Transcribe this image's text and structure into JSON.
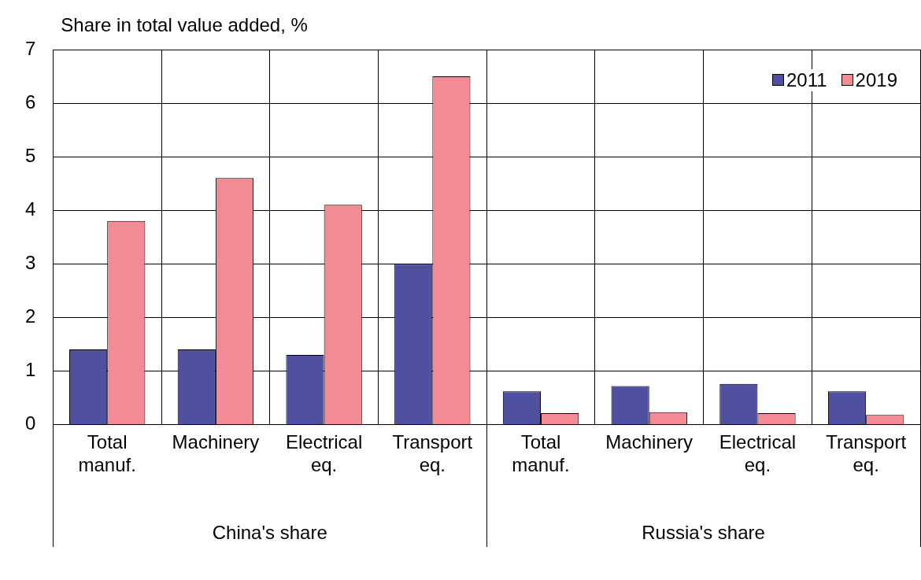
{
  "chart_data": {
    "type": "bar",
    "ylabel": "Share in total value added, %",
    "categories": [
      "Total manuf.",
      "Machinery",
      "Electrical eq.",
      "Transport eq.",
      "Total manuf.",
      "Machinery",
      "Electrical eq.",
      "Transport eq."
    ],
    "series": [
      {
        "name": "2011",
        "color": "#4f51a0",
        "values": [
          1.4,
          1.4,
          1.3,
          3.0,
          0.62,
          0.72,
          0.76,
          0.62
        ]
      },
      {
        "name": "2019",
        "color": "#f28b93",
        "values": [
          3.8,
          4.6,
          4.1,
          6.5,
          0.21,
          0.23,
          0.21,
          0.18
        ]
      }
    ],
    "annotations": [
      "China's share",
      "Russia's share"
    ],
    "ylim": [
      0,
      7
    ],
    "yticks": [
      0,
      1,
      2,
      3,
      4,
      5,
      6,
      7
    ],
    "grid": true,
    "legend": "top right"
  }
}
